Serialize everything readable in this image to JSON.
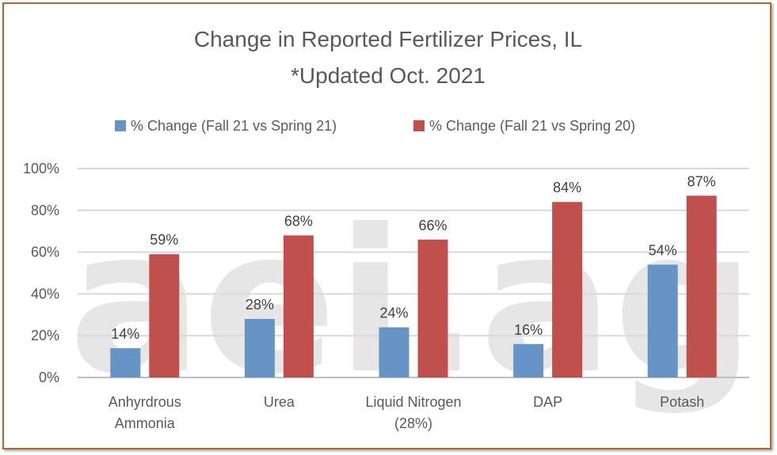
{
  "chart_data": {
    "type": "bar",
    "title_lines": [
      "Change in Reported Fertilizer Prices, IL",
      "*Updated Oct. 2021"
    ],
    "watermark": "aei.ag",
    "categories": [
      [
        "Anhyrdrous",
        "Ammonia"
      ],
      [
        "Urea"
      ],
      [
        "Liquid Nitrogen",
        "(28%)"
      ],
      [
        "DAP"
      ],
      [
        "Potash"
      ]
    ],
    "series": [
      {
        "name": "% Change (Fall 21 vs Spring 21)",
        "color": "#6594c5",
        "values": [
          14,
          28,
          24,
          16,
          54
        ]
      },
      {
        "name": "% Change (Fall 21 vs Spring 20)",
        "color": "#c0504d",
        "values": [
          59,
          68,
          66,
          84,
          87
        ]
      }
    ],
    "yticks": [
      "0%",
      "20%",
      "40%",
      "60%",
      "80%",
      "100%"
    ],
    "ylim": [
      0,
      100
    ],
    "value_suffix": "%",
    "legend_position": "top",
    "grid": true,
    "colors": {
      "frame": "#b5652f",
      "gridline": "#d9d9d9",
      "axis": "#bfbfbf"
    }
  }
}
